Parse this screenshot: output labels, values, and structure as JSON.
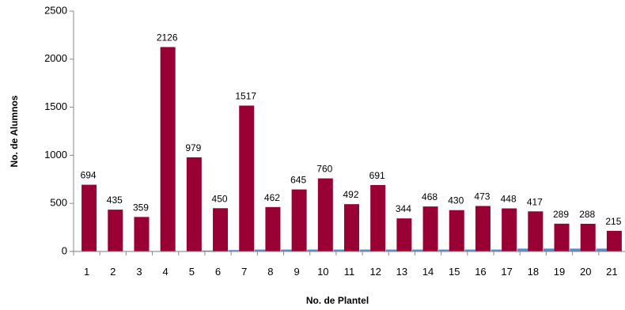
{
  "chart_data": {
    "type": "bar",
    "xlabel": "No. de Plantel",
    "ylabel": "No. de Alumnos",
    "ylim": [
      0,
      2500
    ],
    "yticks": [
      0,
      500,
      1000,
      1500,
      2000,
      2500
    ],
    "grid": false,
    "categories": [
      "1",
      "2",
      "3",
      "4",
      "5",
      "6",
      "7",
      "8",
      "9",
      "10",
      "11",
      "12",
      "13",
      "14",
      "15",
      "16",
      "17",
      "18",
      "19",
      "20",
      "21"
    ],
    "series": [
      {
        "color": "#5b8ac6",
        "values": [
          5,
          5,
          5,
          5,
          5,
          10,
          15,
          20,
          20,
          20,
          20,
          20,
          20,
          20,
          20,
          20,
          20,
          30,
          30,
          30,
          30
        ]
      },
      {
        "color": "#990033",
        "values": [
          694,
          435,
          359,
          2126,
          979,
          450,
          1517,
          462,
          645,
          760,
          492,
          691,
          344,
          468,
          430,
          473,
          448,
          417,
          289,
          288,
          215
        ],
        "data_labels": [
          "694",
          "435",
          "359",
          "2126",
          "979",
          "450",
          "1517",
          "462",
          "645",
          "760",
          "492",
          "691",
          "344",
          "468",
          "430",
          "473",
          "448",
          "417",
          "289",
          "288",
          "215"
        ]
      }
    ]
  }
}
